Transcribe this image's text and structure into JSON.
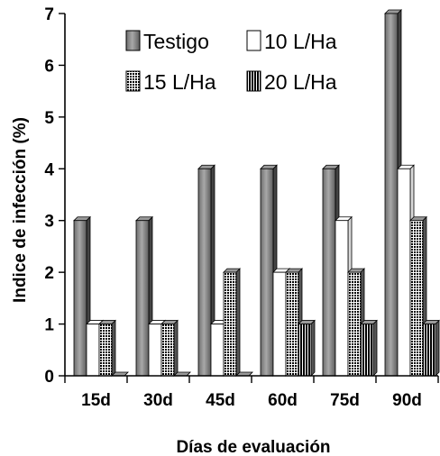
{
  "chart_data": {
    "type": "bar",
    "style": "3d-clustered",
    "categories": [
      "15d",
      "30d",
      "45d",
      "60d",
      "75d",
      "90d"
    ],
    "series": [
      {
        "name": "Testigo",
        "values": [
          3,
          3,
          4,
          4,
          4,
          7
        ],
        "color": "#808080",
        "pattern": "shaded"
      },
      {
        "name": "10 L/Ha",
        "values": [
          1,
          1,
          1,
          2,
          3,
          4
        ],
        "color": "#ffffff",
        "pattern": "white"
      },
      {
        "name": "15 L/Ha",
        "values": [
          1,
          1,
          2,
          2,
          2,
          3
        ],
        "color": "#b0b0b0",
        "pattern": "checker"
      },
      {
        "name": "20 L/Ha",
        "values": [
          0,
          0,
          0,
          1,
          1,
          1
        ],
        "color": "#9a9a9a",
        "pattern": "vertical-stripes"
      }
    ],
    "xlabel": "Días de evaluación",
    "ylabel": "Indice de infección (%)",
    "ylim": [
      0,
      7
    ],
    "yticks": [
      0,
      1,
      2,
      3,
      4,
      5,
      6,
      7
    ],
    "grid": false,
    "legend_position": "top"
  }
}
